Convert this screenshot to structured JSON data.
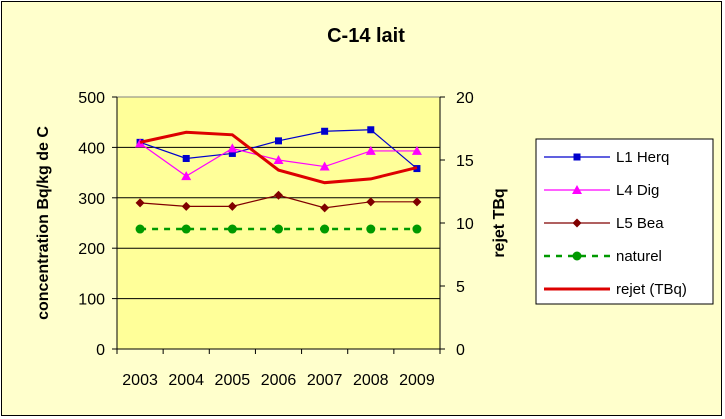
{
  "chart_data": {
    "type": "line",
    "title": "C-14 lait",
    "ylabel": "concentration Bq/kg de C",
    "y2label": "rejet TBq",
    "categories": [
      "2003",
      "2004",
      "2005",
      "2006",
      "2007",
      "2008",
      "2009"
    ],
    "ylim": [
      0,
      500
    ],
    "yticks": [
      0,
      100,
      200,
      300,
      400,
      500
    ],
    "y2lim": [
      0,
      20
    ],
    "y2ticks": [
      0,
      5,
      10,
      15,
      20
    ],
    "grid": "horizontal",
    "plot_background": "#ffff99",
    "chart_background": "#ffffcc",
    "legend_position": "right",
    "series": [
      {
        "name": "L1 Herq",
        "axis": "left",
        "color": "#0000cc",
        "marker": "square",
        "dash": "solid",
        "values": [
          410,
          378,
          388,
          413,
          432,
          435,
          358
        ]
      },
      {
        "name": "L4 Dig",
        "axis": "left",
        "color": "#ff00ff",
        "marker": "triangle",
        "dash": "solid",
        "values": [
          408,
          343,
          398,
          375,
          362,
          393,
          393
        ]
      },
      {
        "name": "L5 Bea",
        "axis": "left",
        "color": "#800000",
        "marker": "diamond",
        "dash": "solid",
        "values": [
          290,
          283,
          283,
          305,
          280,
          292,
          292
        ]
      },
      {
        "name": "naturel",
        "axis": "left",
        "color": "#009900",
        "marker": "circle",
        "dash": "dashed",
        "values": [
          238,
          238,
          238,
          238,
          238,
          238,
          238
        ]
      },
      {
        "name": "rejet (TBq)",
        "axis": "right",
        "color": "#dd0000",
        "marker": "none",
        "dash": "solid",
        "values": [
          16.4,
          17.2,
          17.0,
          14.2,
          13.2,
          13.5,
          14.4
        ]
      }
    ]
  }
}
